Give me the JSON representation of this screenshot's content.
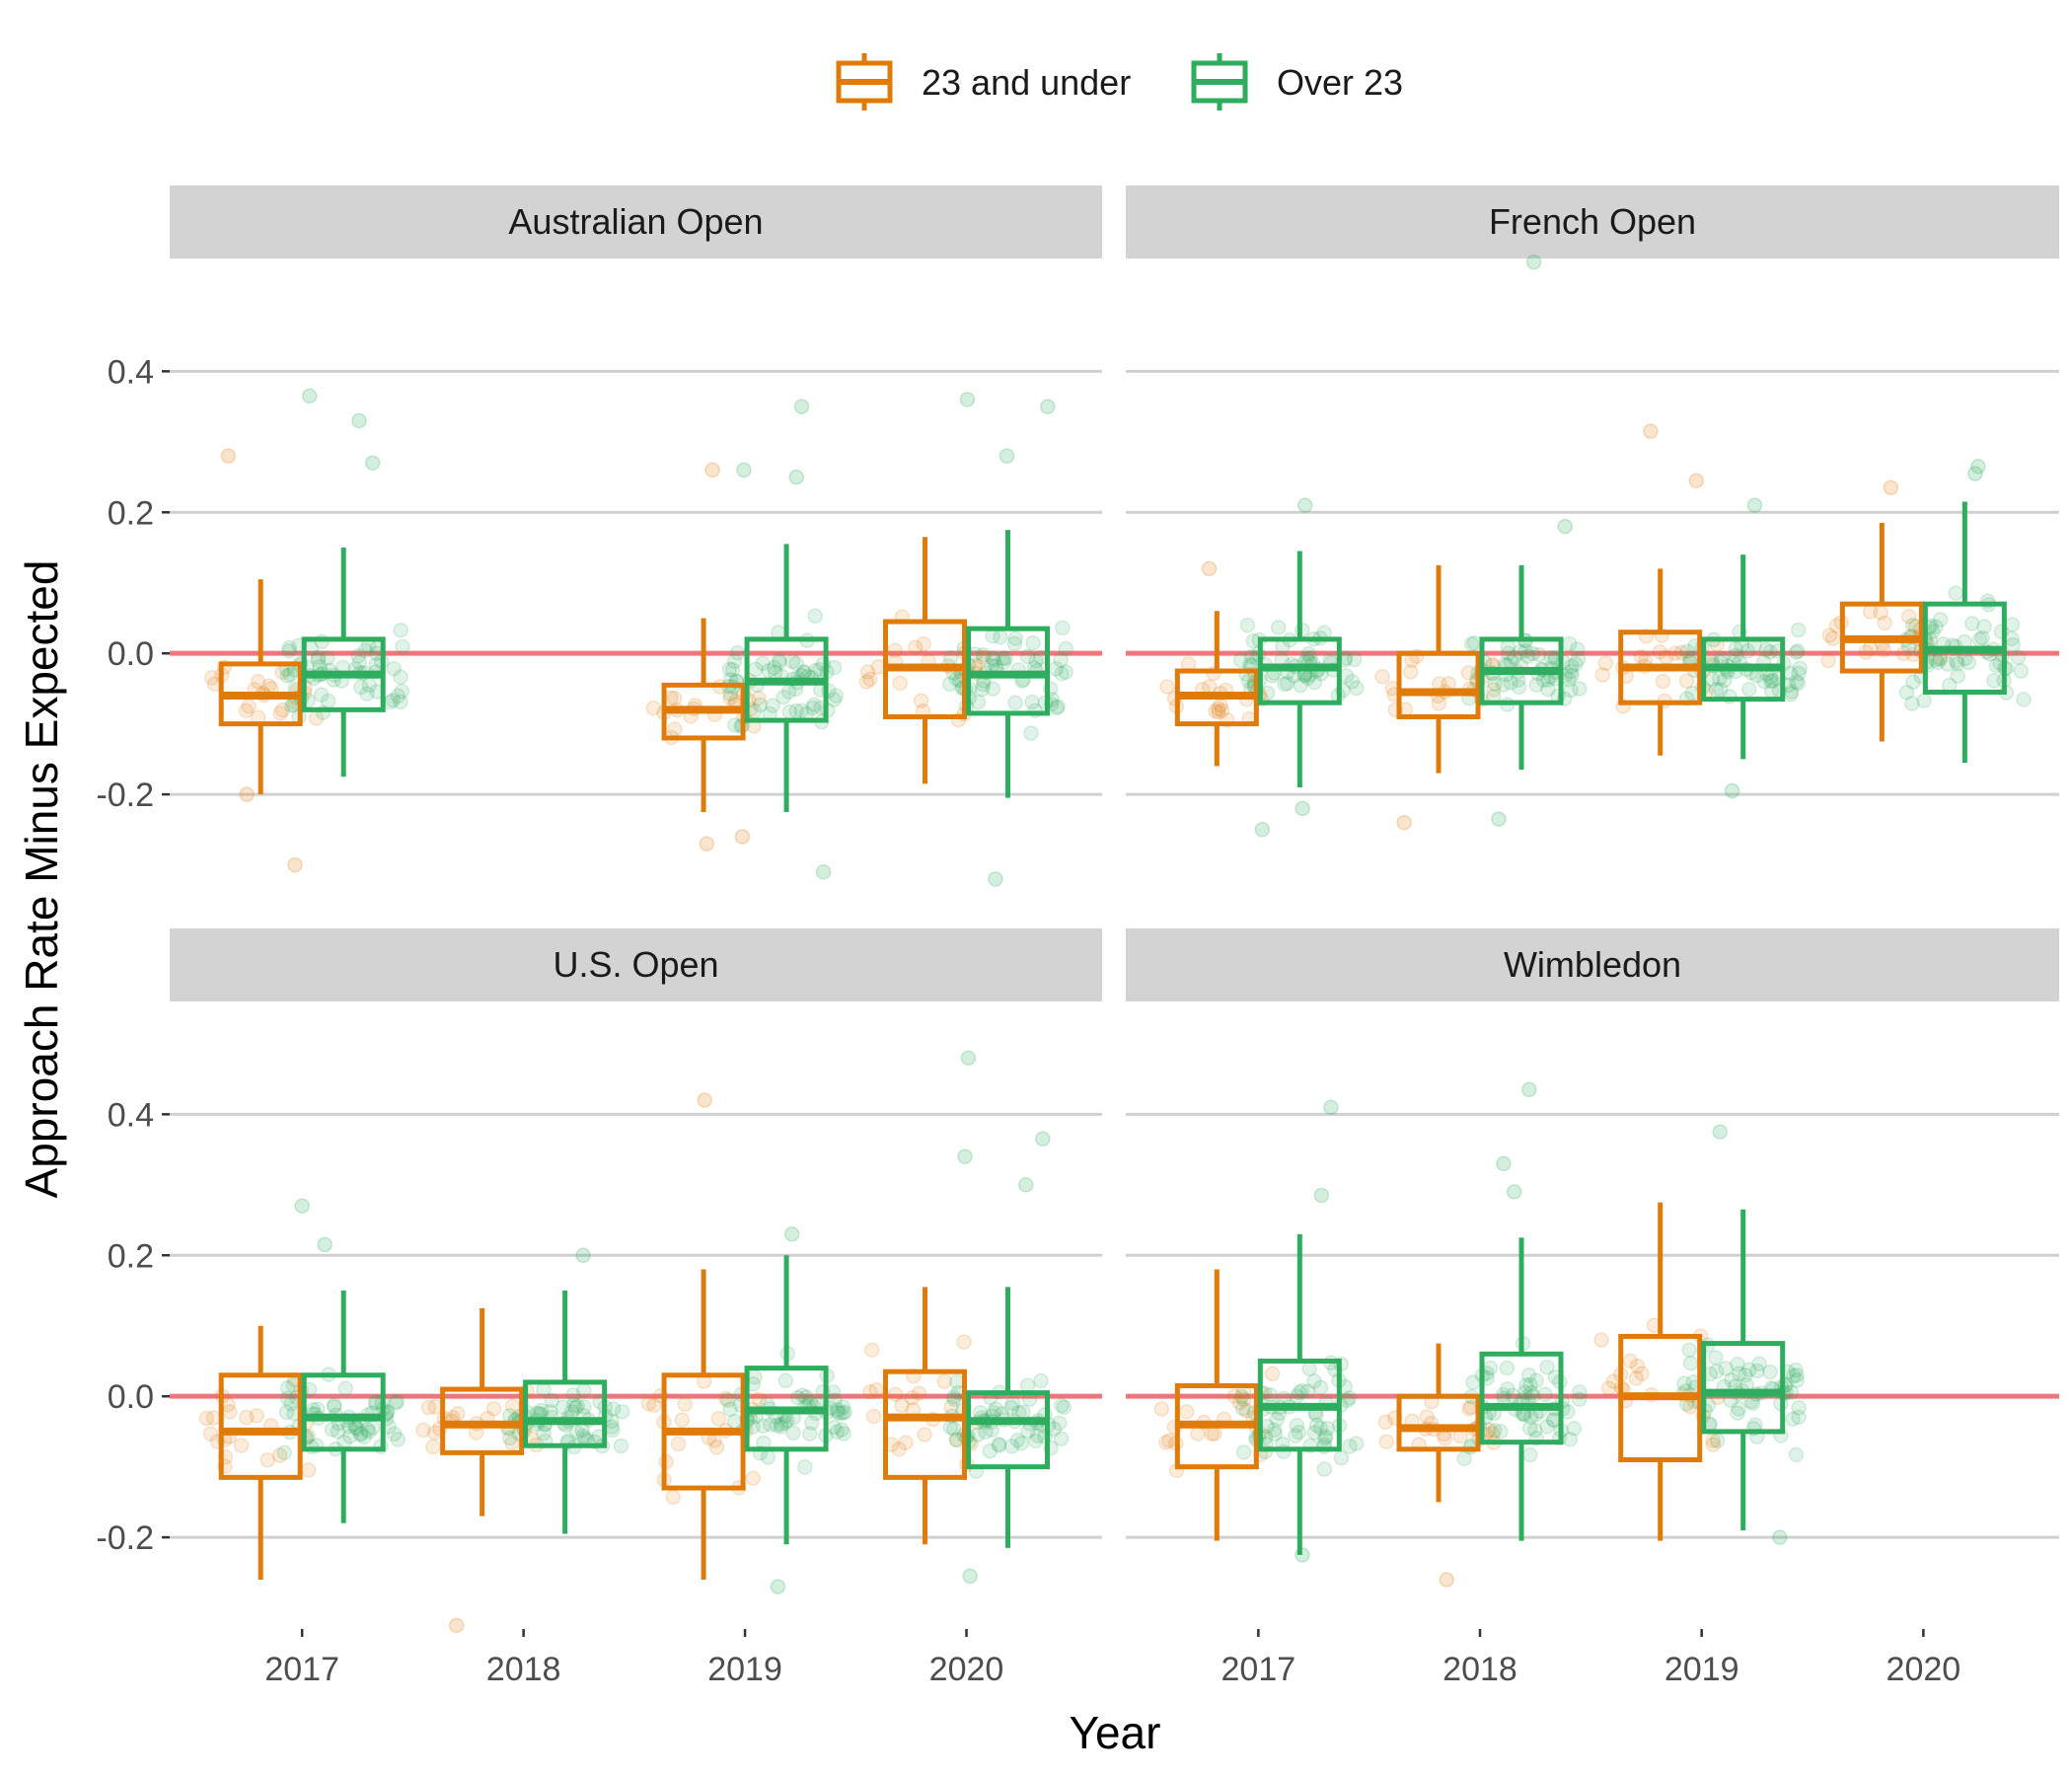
{
  "colors": {
    "group1": "#E07B0A",
    "group2": "#2EAD5E",
    "reference_line": "#F07178",
    "strip_bg": "#D3D3D3",
    "grid": "#D0D0D0"
  },
  "legend": {
    "items": [
      {
        "label": "23 and under",
        "color_key": "group1"
      },
      {
        "label": "Over 23",
        "color_key": "group2"
      }
    ]
  },
  "axes": {
    "x_title": "Year",
    "y_title": "Approach Rate Minus Expected",
    "x_ticks": [
      "2017",
      "2018",
      "2019",
      "2020"
    ],
    "y_ticks": [
      "0.4",
      "0.2",
      "0.0",
      "-0.2"
    ]
  },
  "chart_data": {
    "type": "boxplot",
    "facets_layout": "2x2",
    "ylim": [
      -0.33,
      0.56
    ],
    "y_tick_values": [
      0.4,
      0.2,
      0.0,
      -0.2
    ],
    "categories": [
      "2017",
      "2018",
      "2019",
      "2020"
    ],
    "groups": [
      "23 and under",
      "Over 23"
    ],
    "reference_line": 0.0,
    "jittered_points": true,
    "facets": [
      {
        "title": "Australian Open",
        "boxes": [
          {
            "year": "2017",
            "group": "23 and under",
            "whisker_low": -0.2,
            "q1": -0.1,
            "median": -0.06,
            "q3": -0.015,
            "whisker_high": 0.105,
            "outliers": [
              0.28,
              -0.3,
              -0.2
            ]
          },
          {
            "year": "2017",
            "group": "Over 23",
            "whisker_low": -0.175,
            "q1": -0.08,
            "median": -0.03,
            "q3": 0.02,
            "whisker_high": 0.15,
            "outliers": [
              0.365,
              0.33,
              0.27
            ]
          },
          {
            "year": "2019",
            "group": "23 and under",
            "whisker_low": -0.225,
            "q1": -0.12,
            "median": -0.08,
            "q3": -0.045,
            "whisker_high": 0.05,
            "outliers": [
              0.26,
              -0.26,
              -0.27
            ]
          },
          {
            "year": "2019",
            "group": "Over 23",
            "whisker_low": -0.225,
            "q1": -0.095,
            "median": -0.04,
            "q3": 0.02,
            "whisker_high": 0.155,
            "outliers": [
              0.35,
              0.26,
              0.25,
              -0.31
            ]
          },
          {
            "year": "2020",
            "group": "23 and under",
            "whisker_low": -0.185,
            "q1": -0.09,
            "median": -0.02,
            "q3": 0.045,
            "whisker_high": 0.165,
            "outliers": []
          },
          {
            "year": "2020",
            "group": "Over 23",
            "whisker_low": -0.205,
            "q1": -0.085,
            "median": -0.03,
            "q3": 0.035,
            "whisker_high": 0.175,
            "outliers": [
              0.36,
              0.35,
              0.28,
              -0.32
            ]
          }
        ]
      },
      {
        "title": "French Open",
        "boxes": [
          {
            "year": "2017",
            "group": "23 and under",
            "whisker_low": -0.16,
            "q1": -0.1,
            "median": -0.06,
            "q3": -0.025,
            "whisker_high": 0.06,
            "outliers": [
              0.12
            ]
          },
          {
            "year": "2017",
            "group": "Over 23",
            "whisker_low": -0.19,
            "q1": -0.07,
            "median": -0.02,
            "q3": 0.02,
            "whisker_high": 0.145,
            "outliers": [
              0.21,
              -0.22,
              -0.25
            ]
          },
          {
            "year": "2018",
            "group": "23 and under",
            "whisker_low": -0.17,
            "q1": -0.09,
            "median": -0.055,
            "q3": 0.0,
            "whisker_high": 0.125,
            "outliers": [
              -0.24
            ]
          },
          {
            "year": "2018",
            "group": "Over 23",
            "whisker_low": -0.165,
            "q1": -0.07,
            "median": -0.025,
            "q3": 0.02,
            "whisker_high": 0.125,
            "outliers": [
              0.555,
              0.18,
              -0.235
            ]
          },
          {
            "year": "2019",
            "group": "23 and under",
            "whisker_low": -0.145,
            "q1": -0.07,
            "median": -0.02,
            "q3": 0.03,
            "whisker_high": 0.12,
            "outliers": [
              0.315,
              0.245
            ]
          },
          {
            "year": "2019",
            "group": "Over 23",
            "whisker_low": -0.15,
            "q1": -0.065,
            "median": -0.02,
            "q3": 0.02,
            "whisker_high": 0.14,
            "outliers": [
              0.21,
              -0.195
            ]
          },
          {
            "year": "2020",
            "group": "23 and under",
            "whisker_low": -0.125,
            "q1": -0.025,
            "median": 0.02,
            "q3": 0.07,
            "whisker_high": 0.185,
            "outliers": [
              0.235
            ]
          },
          {
            "year": "2020",
            "group": "Over 23",
            "whisker_low": -0.155,
            "q1": -0.055,
            "median": 0.005,
            "q3": 0.07,
            "whisker_high": 0.215,
            "outliers": [
              0.265,
              0.255
            ]
          }
        ]
      },
      {
        "title": "U.S. Open",
        "boxes": [
          {
            "year": "2017",
            "group": "23 and under",
            "whisker_low": -0.26,
            "q1": -0.115,
            "median": -0.05,
            "q3": 0.03,
            "whisker_high": 0.1,
            "outliers": []
          },
          {
            "year": "2017",
            "group": "Over 23",
            "whisker_low": -0.18,
            "q1": -0.075,
            "median": -0.03,
            "q3": 0.03,
            "whisker_high": 0.15,
            "outliers": [
              0.27,
              0.215
            ]
          },
          {
            "year": "2018",
            "group": "23 and under",
            "whisker_low": -0.17,
            "q1": -0.08,
            "median": -0.04,
            "q3": 0.01,
            "whisker_high": 0.125,
            "outliers": [
              -0.325
            ]
          },
          {
            "year": "2018",
            "group": "Over 23",
            "whisker_low": -0.195,
            "q1": -0.07,
            "median": -0.035,
            "q3": 0.02,
            "whisker_high": 0.15,
            "outliers": [
              0.2
            ]
          },
          {
            "year": "2019",
            "group": "23 and under",
            "whisker_low": -0.26,
            "q1": -0.13,
            "median": -0.05,
            "q3": 0.03,
            "whisker_high": 0.18,
            "outliers": [
              0.42
            ]
          },
          {
            "year": "2019",
            "group": "Over 23",
            "whisker_low": -0.21,
            "q1": -0.075,
            "median": -0.02,
            "q3": 0.04,
            "whisker_high": 0.2,
            "outliers": [
              0.23,
              -0.27
            ]
          },
          {
            "year": "2020",
            "group": "23 and under",
            "whisker_low": -0.21,
            "q1": -0.115,
            "median": -0.03,
            "q3": 0.035,
            "whisker_high": 0.155,
            "outliers": []
          },
          {
            "year": "2020",
            "group": "Over 23",
            "whisker_low": -0.215,
            "q1": -0.1,
            "median": -0.035,
            "q3": 0.005,
            "whisker_high": 0.155,
            "outliers": [
              0.48,
              0.365,
              0.34,
              0.3,
              -0.255
            ]
          }
        ]
      },
      {
        "title": "Wimbledon",
        "boxes": [
          {
            "year": "2017",
            "group": "23 and under",
            "whisker_low": -0.205,
            "q1": -0.1,
            "median": -0.04,
            "q3": 0.015,
            "whisker_high": 0.18,
            "outliers": []
          },
          {
            "year": "2017",
            "group": "Over 23",
            "whisker_low": -0.225,
            "q1": -0.075,
            "median": -0.015,
            "q3": 0.05,
            "whisker_high": 0.23,
            "outliers": [
              0.41,
              0.285,
              -0.225
            ]
          },
          {
            "year": "2018",
            "group": "23 and under",
            "whisker_low": -0.15,
            "q1": -0.075,
            "median": -0.045,
            "q3": 0.0,
            "whisker_high": 0.075,
            "outliers": [
              -0.26
            ]
          },
          {
            "year": "2018",
            "group": "Over 23",
            "whisker_low": -0.205,
            "q1": -0.065,
            "median": -0.015,
            "q3": 0.06,
            "whisker_high": 0.225,
            "outliers": [
              0.435,
              0.33,
              0.29
            ]
          },
          {
            "year": "2019",
            "group": "23 and under",
            "whisker_low": -0.205,
            "q1": -0.09,
            "median": 0.0,
            "q3": 0.085,
            "whisker_high": 0.275,
            "outliers": []
          },
          {
            "year": "2019",
            "group": "Over 23",
            "whisker_low": -0.19,
            "q1": -0.05,
            "median": 0.005,
            "q3": 0.075,
            "whisker_high": 0.265,
            "outliers": [
              0.375,
              -0.2
            ]
          }
        ]
      }
    ]
  }
}
